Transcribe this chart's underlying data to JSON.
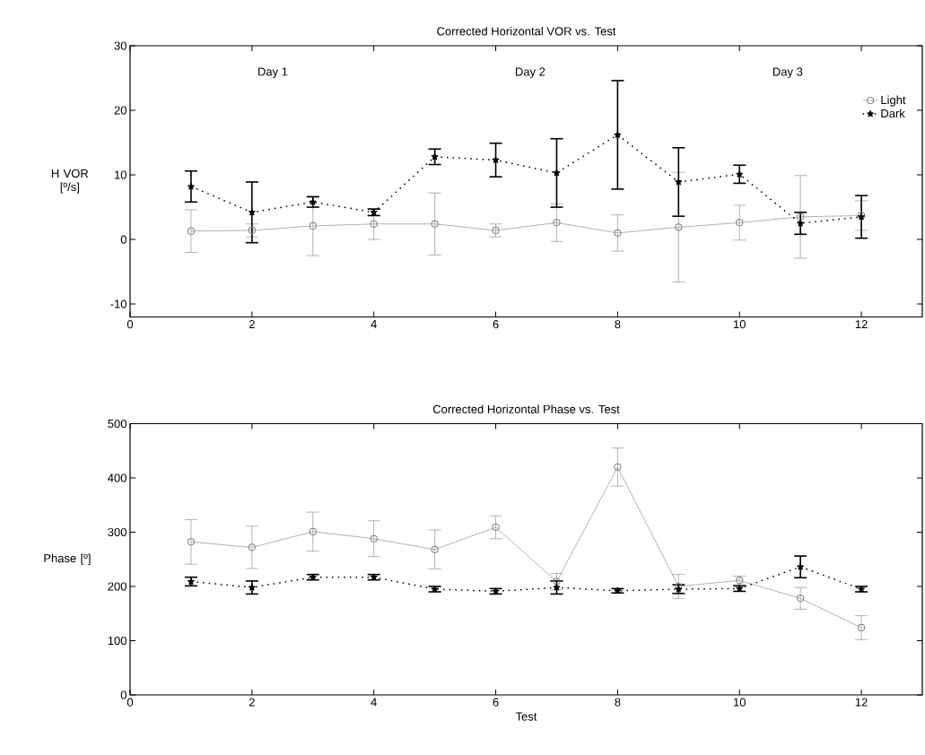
{
  "chart_data": [
    {
      "type": "line",
      "title": "Corrected Horizontal VOR vs. Test",
      "ylabel": "H VOR [º/s]",
      "x": [
        1,
        2,
        3,
        4,
        5,
        6,
        7,
        8,
        9,
        10,
        11,
        12
      ],
      "xlim": [
        0,
        13
      ],
      "xticks": [
        0,
        2,
        4,
        6,
        8,
        10,
        12
      ],
      "ylim": [
        -12,
        30
      ],
      "yticks": [
        -10,
        0,
        10,
        20,
        30
      ],
      "legend": "top right",
      "grid": false,
      "annotations": [
        "Day 1",
        "Day 2",
        "Day 3"
      ],
      "series": [
        {
          "name": "Light",
          "color": "#808080",
          "marker": "circle",
          "line_style": "solid",
          "values": [
            1.3,
            1.4,
            2.1,
            2.4,
            2.4,
            1.4,
            2.6,
            1.0,
            1.9,
            2.6,
            3.5,
            3.7
          ],
          "errors": [
            3.3,
            1,
            4.6,
            2.4,
            4.8,
            1.0,
            2.9,
            2.8,
            8.5,
            2.7,
            6.4,
            2.3
          ]
        },
        {
          "name": "Dark",
          "color": "#000000",
          "marker": "star",
          "line_style": "dotted",
          "values": [
            8.2,
            4.2,
            5.8,
            4.2,
            12.8,
            12.3,
            10.3,
            16.2,
            8.9,
            10.1,
            2.5,
            3.5
          ],
          "errors": [
            2.4,
            4.7,
            0.8,
            0.5,
            1.2,
            2.6,
            5.3,
            8.4,
            5.3,
            1.4,
            1.7,
            3.3
          ]
        }
      ]
    },
    {
      "type": "line",
      "title": "Corrected Horizontal Phase vs. Test",
      "xlabel": "Test",
      "ylabel": "Phase [º]",
      "x": [
        1,
        2,
        3,
        4,
        5,
        6,
        7,
        8,
        9,
        10,
        11,
        12
      ],
      "xlim": [
        0,
        13
      ],
      "xticks": [
        0,
        2,
        4,
        6,
        8,
        10,
        12
      ],
      "ylim": [
        0,
        500
      ],
      "yticks": [
        0,
        100,
        200,
        300,
        400,
        500
      ],
      "grid": false,
      "series": [
        {
          "color": "#808080",
          "marker": "circle",
          "line_style": "solid",
          "values": [
            282,
            272,
            301,
            288,
            268,
            309,
            209,
            420,
            200,
            211,
            178,
            124
          ],
          "errors": [
            41,
            39,
            36,
            33,
            36,
            21,
            15,
            35,
            22,
            8,
            20,
            22
          ]
        },
        {
          "color": "#000000",
          "marker": "star",
          "line_style": "dotted",
          "values": [
            209,
            198,
            217,
            217,
            195,
            191,
            198,
            192,
            195,
            196,
            236,
            195
          ],
          "errors": [
            8,
            12,
            5,
            5,
            5,
            5,
            12,
            4,
            8,
            5,
            20,
            5
          ]
        }
      ]
    }
  ]
}
